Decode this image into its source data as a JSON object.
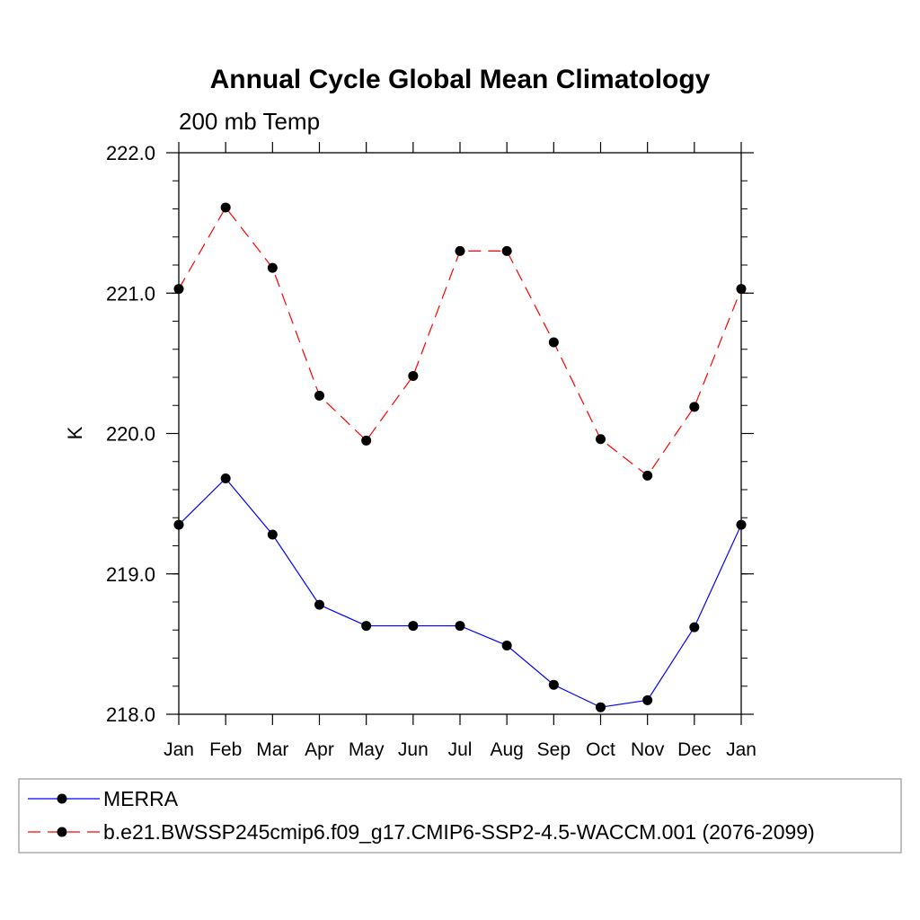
{
  "chart_data": {
    "type": "line",
    "title": "Annual Cycle Global Mean Climatology",
    "subtitle": "200 mb Temp",
    "xlabel": "",
    "ylabel": "K",
    "categories": [
      "Jan",
      "Feb",
      "Mar",
      "Apr",
      "May",
      "Jun",
      "Jul",
      "Aug",
      "Sep",
      "Oct",
      "Nov",
      "Dec",
      "Jan"
    ],
    "ylim": [
      218.0,
      222.0
    ],
    "yticks": [
      "218.0",
      "219.0",
      "220.0",
      "221.0",
      "222.0"
    ],
    "series": [
      {
        "name": "MERRA",
        "color": "#0000ff",
        "dash": "solid",
        "values": [
          219.35,
          219.68,
          219.28,
          218.78,
          218.63,
          218.63,
          218.63,
          218.49,
          218.21,
          218.05,
          218.1,
          218.62,
          219.35
        ]
      },
      {
        "name": "b.e21.BWSSP245cmip6.f09_g17.CMIP6-SSP2-4.5-WACCM.001 (2076-2099)",
        "color": "#ff0000",
        "dash": "dashed",
        "values": [
          221.03,
          221.61,
          221.18,
          220.27,
          219.95,
          220.41,
          221.3,
          221.3,
          220.65,
          219.96,
          219.7,
          220.19,
          221.03
        ]
      }
    ],
    "legend": "bottom",
    "grid": false
  }
}
